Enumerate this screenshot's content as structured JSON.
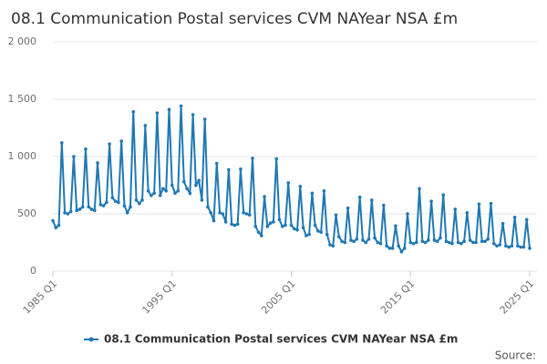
{
  "chart_data": {
    "type": "line",
    "title": "08.1 Communication Postal services CVM NAYear NSA £m",
    "source": "Source:",
    "categories": [
      "1985 Q1",
      null,
      null,
      null,
      null,
      null,
      null,
      null,
      null,
      null,
      null,
      null,
      null,
      null,
      null,
      null,
      null,
      null,
      null,
      null,
      null,
      null,
      null,
      null,
      null,
      null,
      null,
      null,
      null,
      null,
      null,
      null,
      null,
      null,
      null,
      null,
      null,
      null,
      null,
      null,
      "1995 Q1",
      null,
      null,
      null,
      null,
      null,
      null,
      null,
      null,
      null,
      null,
      null,
      null,
      null,
      null,
      null,
      null,
      null,
      null,
      null,
      null,
      null,
      null,
      null,
      null,
      null,
      null,
      null,
      null,
      null,
      null,
      null,
      null,
      null,
      null,
      null,
      null,
      null,
      null,
      null,
      "2005 Q1",
      null,
      null,
      null,
      null,
      null,
      null,
      null,
      null,
      null,
      null,
      null,
      null,
      null,
      null,
      null,
      null,
      null,
      null,
      null,
      null,
      null,
      null,
      null,
      null,
      null,
      null,
      null,
      null,
      null,
      null,
      null,
      null,
      null,
      null,
      null,
      null,
      null,
      null,
      null,
      "2015 Q1",
      null,
      null,
      null,
      null,
      null,
      null,
      null,
      null,
      null,
      null,
      null,
      null,
      null,
      null,
      null,
      null,
      null,
      null,
      null,
      null,
      null,
      null,
      null,
      null,
      null,
      null,
      null,
      null,
      null,
      null,
      null,
      null,
      null,
      null,
      null,
      null,
      null,
      null,
      null,
      "2025 Q1"
    ],
    "series": [
      {
        "name": "08.1 Communication Postal services CVM NAYear NSA £m",
        "color": "#1f78b4",
        "values": [
          440,
          380,
          400,
          1120,
          510,
          500,
          520,
          1000,
          530,
          540,
          560,
          1065,
          560,
          540,
          530,
          945,
          580,
          570,
          600,
          1110,
          640,
          610,
          600,
          1135,
          570,
          510,
          560,
          1390,
          620,
          590,
          620,
          1270,
          700,
          660,
          680,
          1380,
          660,
          720,
          700,
          1410,
          750,
          680,
          700,
          1440,
          780,
          720,
          680,
          1365,
          750,
          790,
          620,
          1325,
          560,
          510,
          440,
          940,
          510,
          500,
          430,
          885,
          410,
          400,
          410,
          890,
          510,
          500,
          490,
          985,
          390,
          340,
          310,
          650,
          390,
          420,
          430,
          980,
          450,
          390,
          400,
          770,
          400,
          370,
          360,
          740,
          380,
          310,
          320,
          680,
          400,
          350,
          340,
          700,
          320,
          230,
          220,
          490,
          300,
          260,
          250,
          550,
          270,
          260,
          280,
          645,
          270,
          250,
          280,
          620,
          290,
          250,
          240,
          575,
          220,
          200,
          200,
          395,
          220,
          170,
          200,
          500,
          250,
          240,
          250,
          720,
          260,
          250,
          270,
          610,
          270,
          260,
          290,
          665,
          260,
          250,
          240,
          540,
          250,
          240,
          260,
          510,
          270,
          250,
          250,
          585,
          260,
          260,
          280,
          590,
          240,
          220,
          230,
          415,
          220,
          210,
          220,
          470,
          220,
          210,
          210,
          450,
          200
        ]
      }
    ],
    "ylim": [
      0,
      2000
    ],
    "yticks": [
      0,
      500,
      {
        "value": 1000,
        "label": "1 000"
      },
      {
        "value": 1500,
        "label": "1 500"
      },
      {
        "value": 2000,
        "label": "2 000"
      }
    ],
    "grid": true,
    "legend": "bottom"
  }
}
